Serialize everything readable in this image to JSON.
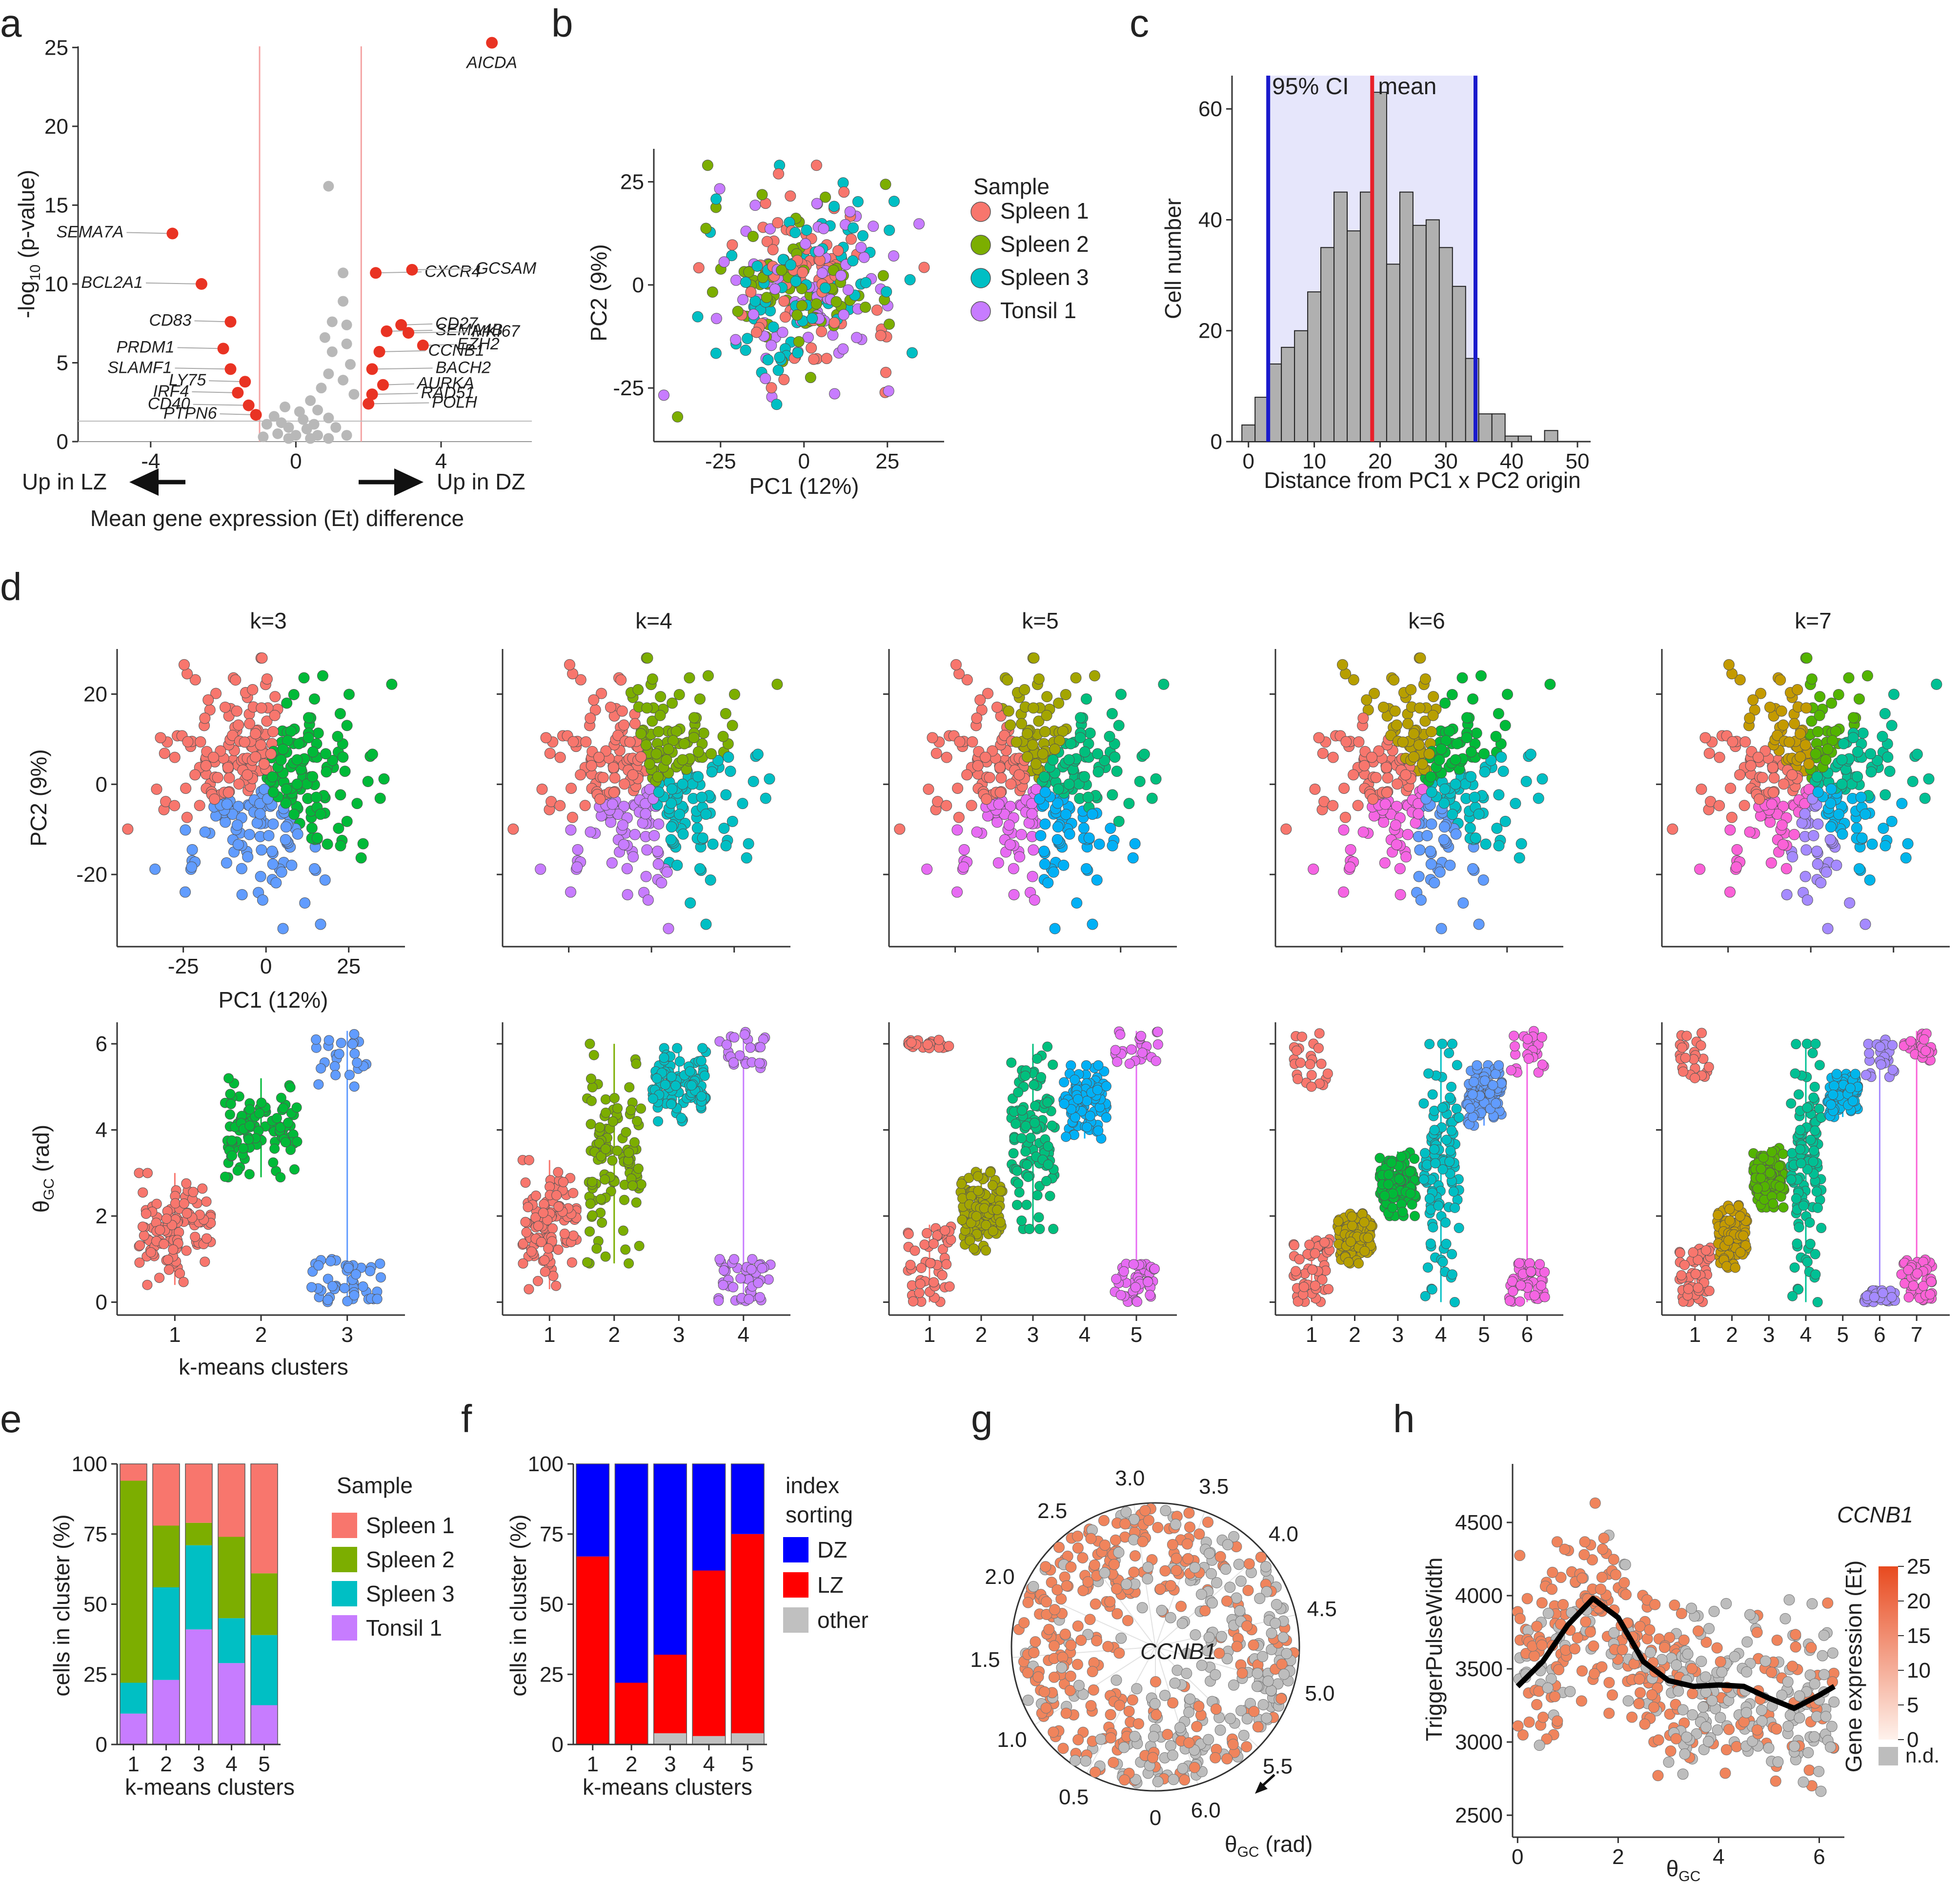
{
  "figure": {
    "panel_letters": [
      "a",
      "b",
      "c",
      "d",
      "e",
      "f",
      "g",
      "h"
    ]
  },
  "colors": {
    "spleen1": "#f8766d",
    "spleen2": "#7cae00",
    "spleen3": "#00bfc4",
    "tonsil1": "#c77cff",
    "dz": "#0000ff",
    "lz": "#ff0000",
    "other": "#c0c0c0",
    "ci": "#1a1acc",
    "ci_fill": "#e6e6fb",
    "mean": "#e8202a",
    "hi_gene": "#e93323",
    "ns_gene": "#b8b8b8",
    "expr": "#f0845c",
    "nd": "#bdbdbd"
  },
  "chart_data": [
    {
      "id": "a",
      "type": "scatter",
      "title": "",
      "xlabel": "Mean gene expression (Et) difference",
      "ylabel": "-log10 (p-value)",
      "ylabel_main": "-log",
      "ylabel_sub": "10",
      "ylabel_rest": " (p-value)",
      "xlim": [
        -6,
        6.5
      ],
      "ylim": [
        0,
        26
      ],
      "xticks": [
        -4,
        0,
        4
      ],
      "yticks": [
        0,
        5,
        10,
        15,
        20,
        25
      ],
      "arrow_left": "Up in LZ",
      "arrow_right": "Up in DZ",
      "threshold_x": [
        -1,
        1.8
      ],
      "threshold_y": 1.3,
      "labeled_genes": [
        {
          "gene": "AICDA",
          "x": 5.4,
          "y": 25.3
        },
        {
          "gene": "SEMA7A",
          "x": -3.4,
          "y": 13.2
        },
        {
          "gene": "BCL2A1",
          "x": -2.6,
          "y": 10.0
        },
        {
          "gene": "CD83",
          "x": -1.8,
          "y": 7.6
        },
        {
          "gene": "PRDM1",
          "x": -2.0,
          "y": 5.9
        },
        {
          "gene": "SLAMF1",
          "x": -1.8,
          "y": 4.6
        },
        {
          "gene": "LY75",
          "x": -1.4,
          "y": 3.8
        },
        {
          "gene": "IRF4",
          "x": -1.6,
          "y": 3.1
        },
        {
          "gene": "CD40",
          "x": -1.3,
          "y": 2.3
        },
        {
          "gene": "PTPN6",
          "x": -1.1,
          "y": 1.7
        },
        {
          "gene": "CXCR4",
          "x": 2.2,
          "y": 10.7
        },
        {
          "gene": "GCSAM",
          "x": 3.2,
          "y": 10.9
        },
        {
          "gene": "CD27",
          "x": 2.9,
          "y": 7.4
        },
        {
          "gene": "SEMA4B",
          "x": 2.5,
          "y": 7.0
        },
        {
          "gene": "MKI67",
          "x": 3.1,
          "y": 6.9
        },
        {
          "gene": "EZH2",
          "x": 3.5,
          "y": 6.1
        },
        {
          "gene": "CCNB1",
          "x": 2.3,
          "y": 5.7
        },
        {
          "gene": "BACH2",
          "x": 2.1,
          "y": 4.6
        },
        {
          "gene": "AURKA",
          "x": 2.4,
          "y": 3.6
        },
        {
          "gene": "RAD51",
          "x": 2.1,
          "y": 3.0
        },
        {
          "gene": "POLH",
          "x": 2.0,
          "y": 2.4
        }
      ],
      "grey_genes": [
        [
          0.9,
          16.2
        ],
        [
          1.3,
          10.7
        ],
        [
          1.3,
          8.9
        ],
        [
          1.0,
          7.6
        ],
        [
          1.4,
          7.4
        ],
        [
          0.8,
          6.6
        ],
        [
          1.4,
          6.2
        ],
        [
          1.0,
          5.7
        ],
        [
          1.5,
          4.9
        ],
        [
          0.9,
          4.3
        ],
        [
          1.3,
          3.9
        ],
        [
          0.7,
          3.4
        ],
        [
          1.6,
          3.0
        ],
        [
          0.4,
          2.6
        ],
        [
          -0.3,
          2.2
        ],
        [
          0.6,
          2.0
        ],
        [
          -0.6,
          1.6
        ],
        [
          0.2,
          1.4
        ],
        [
          0.9,
          1.5
        ],
        [
          -0.8,
          1.1
        ],
        [
          -0.2,
          0.9
        ],
        [
          0.3,
          0.8
        ],
        [
          1.1,
          0.9
        ],
        [
          -0.5,
          0.5
        ],
        [
          0.0,
          0.4
        ],
        [
          0.6,
          0.4
        ],
        [
          -0.9,
          0.3
        ],
        [
          0.4,
          0.2
        ],
        [
          -0.2,
          0.2
        ],
        [
          0.9,
          0.2
        ],
        [
          1.4,
          0.4
        ],
        [
          -0.4,
          1.2
        ],
        [
          0.1,
          1.9
        ],
        [
          0.5,
          1.1
        ]
      ]
    },
    {
      "id": "b",
      "type": "scatter",
      "xlabel": "PC1 (12%)",
      "ylabel": "PC2 (9%)",
      "xlim": [
        -45,
        42
      ],
      "ylim": [
        -38,
        33
      ],
      "xticks": [
        -25,
        0,
        25
      ],
      "yticks": [
        -25,
        0,
        25
      ],
      "legend_title": "Sample",
      "series": [
        {
          "name": "Spleen 1",
          "color_key": "spleen1"
        },
        {
          "name": "Spleen 2",
          "color_key": "spleen2"
        },
        {
          "name": "Spleen 3",
          "color_key": "spleen3"
        },
        {
          "name": "Tonsil 1",
          "color_key": "tonsil1"
        }
      ]
    },
    {
      "id": "c",
      "type": "bar",
      "xlabel": "Distance from PC1 x PC2 origin",
      "ylabel": "Cell number",
      "xlim": [
        -2.5,
        52
      ],
      "ylim": [
        0,
        66
      ],
      "xticks": [
        0,
        10,
        20,
        30,
        40,
        50
      ],
      "yticks": [
        0,
        20,
        40,
        60
      ],
      "bin_width": 2,
      "bin_start": -1,
      "values": [
        3,
        8,
        14,
        17,
        20,
        27,
        35,
        45,
        38,
        45,
        63,
        32,
        45,
        39,
        40,
        35,
        28,
        15,
        5,
        5,
        1,
        1,
        0,
        2
      ],
      "ci_low": 3,
      "ci_high": 34.5,
      "mean": 18.8,
      "ci_label": "95% CI",
      "mean_label": "mean"
    },
    {
      "id": "d",
      "type": "scatter",
      "pc_xlabel": "PC1 (12%)",
      "pc_ylabel": "PC2 (9%)",
      "theta_ylabel": "θGC (rad)",
      "theta_ylabel_main": "θ",
      "theta_ylabel_sub": "GC",
      "theta_ylabel_rest": " (rad)",
      "cluster_xlabel": "k-means clusters",
      "pc_xticks": [
        -25,
        0,
        25
      ],
      "pc_yticks": [
        -20,
        0,
        20
      ],
      "theta_yticks": [
        0,
        2,
        4,
        6
      ],
      "panels": [
        {
          "title": "k=3",
          "k": 3,
          "colors": [
            "#f8766d",
            "#00ba38",
            "#619cff"
          ],
          "ranges": [
            [
              0.4,
              3.0
            ],
            [
              2.9,
              5.2
            ],
            [
              0.0,
              6.3
            ]
          ],
          "split": [
            null,
            null,
            [
              0.0,
              1.0,
              5.0,
              6.3
            ]
          ]
        },
        {
          "title": "k=4",
          "k": 4,
          "colors": [
            "#f8766d",
            "#7cae00",
            "#00bfc4",
            "#c77cff"
          ],
          "ranges": [
            [
              0.3,
              3.3
            ],
            [
              0.9,
              6.0
            ],
            [
              4.2,
              5.9
            ],
            [
              0.0,
              6.3
            ]
          ],
          "split": [
            null,
            null,
            null,
            [
              0.0,
              1.0,
              5.4,
              6.3
            ]
          ]
        },
        {
          "title": "k=5",
          "k": 5,
          "colors": [
            "#f8766d",
            "#a3a500",
            "#00bf7d",
            "#00b0f6",
            "#e76bf3"
          ],
          "ranges": [
            [
              0.0,
              1.8
            ],
            [
              1.2,
              3.1
            ],
            [
              1.7,
              6.0
            ],
            [
              3.8,
              5.5
            ],
            [
              0.0,
              6.3
            ]
          ],
          "split": [
            [
              0.0,
              1.8,
              5.9,
              6.1
            ],
            null,
            null,
            null,
            [
              0.0,
              0.9,
              5.5,
              6.3
            ]
          ]
        },
        {
          "title": "k=6",
          "k": 6,
          "colors": [
            "#f8766d",
            "#b79f00",
            "#00ba38",
            "#00bfc4",
            "#619cff",
            "#f564e3"
          ],
          "ranges": [
            [
              0.0,
              1.5
            ],
            [
              0.9,
              2.1
            ],
            [
              2.0,
              3.5
            ],
            [
              0.0,
              6.0
            ],
            [
              4.1,
              5.5
            ],
            [
              0.0,
              6.3
            ]
          ],
          "split": [
            [
              0.0,
              1.5,
              5.0,
              6.3
            ],
            null,
            null,
            null,
            null,
            [
              0.0,
              1.0,
              5.3,
              6.3
            ]
          ]
        },
        {
          "title": "k=7",
          "k": 7,
          "colors": [
            "#f8766d",
            "#c49a00",
            "#53b400",
            "#00c094",
            "#00b6eb",
            "#a58aff",
            "#fb61d7"
          ],
          "ranges": [
            [
              0.0,
              1.3
            ],
            [
              0.8,
              2.3
            ],
            [
              2.2,
              3.6
            ],
            [
              0.0,
              6.0
            ],
            [
              4.3,
              5.3
            ],
            [
              0.0,
              6.1
            ],
            [
              0.0,
              6.3
            ]
          ],
          "split": [
            [
              0.0,
              1.3,
              5.2,
              6.3
            ],
            null,
            null,
            null,
            null,
            [
              0.0,
              0.3,
              5.2,
              6.1
            ],
            [
              0.0,
              1.0,
              5.6,
              6.3
            ]
          ]
        }
      ]
    },
    {
      "id": "e",
      "type": "bar",
      "stacked": true,
      "xlabel": "k-means clusters",
      "ylabel": "cells in cluster (%)",
      "categories": [
        "1",
        "2",
        "3",
        "4",
        "5"
      ],
      "ylim": [
        0,
        100
      ],
      "yticks": [
        0,
        25,
        50,
        75,
        100
      ],
      "legend_title": "Sample",
      "series": [
        {
          "name": "Tonsil 1",
          "color_key": "tonsil1",
          "values": [
            11,
            23,
            41,
            29,
            14
          ]
        },
        {
          "name": "Spleen 3",
          "color_key": "spleen3",
          "values": [
            11,
            33,
            30,
            16,
            25
          ]
        },
        {
          "name": "Spleen 2",
          "color_key": "spleen2",
          "values": [
            72,
            22,
            8,
            29,
            22
          ]
        },
        {
          "name": "Spleen 1",
          "color_key": "spleen1",
          "values": [
            6,
            22,
            21,
            26,
            39
          ]
        }
      ],
      "legend_order": [
        "Spleen 1",
        "Spleen 2",
        "Spleen 3",
        "Tonsil 1"
      ]
    },
    {
      "id": "f",
      "type": "bar",
      "stacked": true,
      "xlabel": "k-means clusters",
      "ylabel": "cells in cluster (%)",
      "categories": [
        "1",
        "2",
        "3",
        "4",
        "5"
      ],
      "ylim": [
        0,
        100
      ],
      "yticks": [
        0,
        25,
        50,
        75,
        100
      ],
      "legend_title_1": "index",
      "legend_title_2": "sorting",
      "series": [
        {
          "name": "other",
          "color_key": "other",
          "values": [
            0,
            0,
            4,
            3,
            4
          ]
        },
        {
          "name": "LZ",
          "color_key": "lz",
          "values": [
            67,
            22,
            28,
            59,
            71
          ]
        },
        {
          "name": "DZ",
          "color_key": "dz",
          "values": [
            33,
            78,
            68,
            38,
            25
          ]
        }
      ],
      "legend_order": [
        "DZ",
        "LZ",
        "other"
      ]
    },
    {
      "id": "g",
      "type": "scatter",
      "coords": "polar",
      "center_label": "CCNB1",
      "angle_label_main": "θ",
      "angle_label_sub": "GC",
      "angle_label_rest": " (rad)",
      "angle_ticks": [
        "0",
        "0.5",
        "1.0",
        "1.5",
        "2.0",
        "2.5",
        "3.0",
        "3.5",
        "4.0",
        "4.5",
        "5.0",
        "5.5",
        "6.0"
      ]
    },
    {
      "id": "h",
      "type": "scatter",
      "xlabel": "θGC",
      "xlabel_main": "θ",
      "xlabel_sub": "GC",
      "ylabel": "TriggerPulseWidth",
      "xlim": [
        -0.1,
        6.5
      ],
      "ylim": [
        2350,
        4900
      ],
      "xticks": [
        0,
        2,
        4,
        6
      ],
      "yticks": [
        2500,
        3000,
        3500,
        4000,
        4500
      ],
      "gene_title": "CCNB1",
      "colorbar_label": "Gene expression (Et)",
      "colorbar_ticks": [
        "0",
        "5",
        "10",
        "15",
        "20",
        "25"
      ],
      "nd_label": "n.d.",
      "trend": {
        "x": [
          0.0,
          0.5,
          1.0,
          1.5,
          2.0,
          2.5,
          3.0,
          3.5,
          4.0,
          4.5,
          5.0,
          5.5,
          6.0,
          6.3
        ],
        "y": [
          3380,
          3550,
          3800,
          3980,
          3850,
          3550,
          3420,
          3380,
          3390,
          3380,
          3300,
          3230,
          3320,
          3380
        ]
      }
    }
  ]
}
